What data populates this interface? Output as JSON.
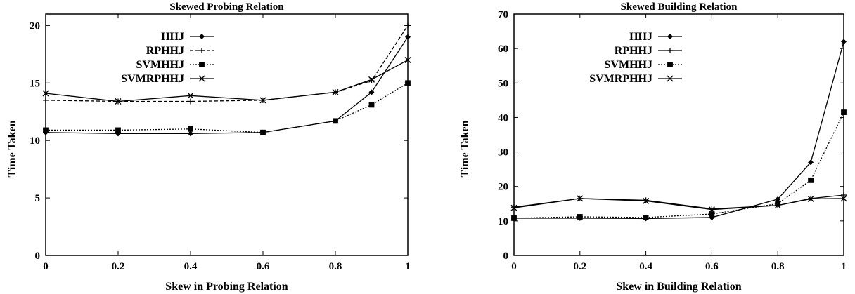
{
  "chart_data": [
    {
      "type": "line",
      "title": "Skewed Probing Relation",
      "xlabel": "Skew in Probing Relation",
      "ylabel": "Time Taken",
      "x": [
        0,
        0.2,
        0.4,
        0.6,
        0.8,
        0.9,
        1
      ],
      "xlim": [
        0,
        1
      ],
      "ylim": [
        0,
        21
      ],
      "xticks": [
        "0",
        "0.2",
        "0.4",
        "0.6",
        "0.8",
        "1"
      ],
      "xtick_values": [
        0,
        0.2,
        0.4,
        0.6,
        0.8,
        1
      ],
      "yticks": [
        "0",
        "5",
        "10",
        "15",
        "20"
      ],
      "ytick_values": [
        0,
        5,
        10,
        15,
        20
      ],
      "grid": false,
      "legend_position": "top-left",
      "series": [
        {
          "name": "HHJ",
          "marker": "diamond",
          "dash": "solid",
          "values": [
            10.7,
            10.6,
            10.6,
            10.7,
            11.7,
            14.2,
            19.0
          ]
        },
        {
          "name": "RPHHJ",
          "marker": "plus",
          "dash": "dashed",
          "values": [
            13.5,
            13.4,
            13.4,
            13.5,
            14.2,
            15.2,
            20.0
          ]
        },
        {
          "name": "SVMHHJ",
          "marker": "square",
          "dash": "dotted",
          "values": [
            10.9,
            10.9,
            11.0,
            10.7,
            11.7,
            13.1,
            15.0
          ]
        },
        {
          "name": "SVMRPHHJ",
          "marker": "cross",
          "dash": "solid",
          "values": [
            14.1,
            13.4,
            13.9,
            13.5,
            14.2,
            15.3,
            17.0
          ]
        }
      ]
    },
    {
      "type": "line",
      "title": "Skewed Building Relation",
      "xlabel": "Skew in Building Relation",
      "ylabel": "Time Taken",
      "x": [
        0,
        0.2,
        0.4,
        0.6,
        0.8,
        0.9,
        1
      ],
      "xlim": [
        0,
        1
      ],
      "ylim": [
        0,
        70
      ],
      "xticks": [
        "0",
        "0.2",
        "0.4",
        "0.6",
        "0.8",
        "1"
      ],
      "xtick_values": [
        0,
        0.2,
        0.4,
        0.6,
        0.8,
        1
      ],
      "yticks": [
        "0",
        "10",
        "20",
        "30",
        "40",
        "50",
        "60",
        "70"
      ],
      "ytick_values": [
        0,
        10,
        20,
        30,
        40,
        50,
        60,
        70
      ],
      "grid": false,
      "legend_position": "top-left",
      "series": [
        {
          "name": "HHJ",
          "marker": "diamond",
          "dash": "solid",
          "values": [
            10.8,
            10.8,
            10.7,
            11.0,
            16.3,
            27.0,
            62.0
          ]
        },
        {
          "name": "RPHHJ",
          "marker": "plus",
          "dash": "solid",
          "values": [
            14.0,
            16.5,
            16.0,
            13.5,
            14.5,
            16.5,
            17.5
          ]
        },
        {
          "name": "SVMHHJ",
          "marker": "square",
          "dash": "dotted",
          "values": [
            10.8,
            11.2,
            11.0,
            12.0,
            15.0,
            21.8,
            41.5
          ]
        },
        {
          "name": "SVMRPHHJ",
          "marker": "cross",
          "dash": "solid",
          "values": [
            13.8,
            16.5,
            15.8,
            13.3,
            14.5,
            16.4,
            16.5
          ]
        }
      ]
    }
  ]
}
